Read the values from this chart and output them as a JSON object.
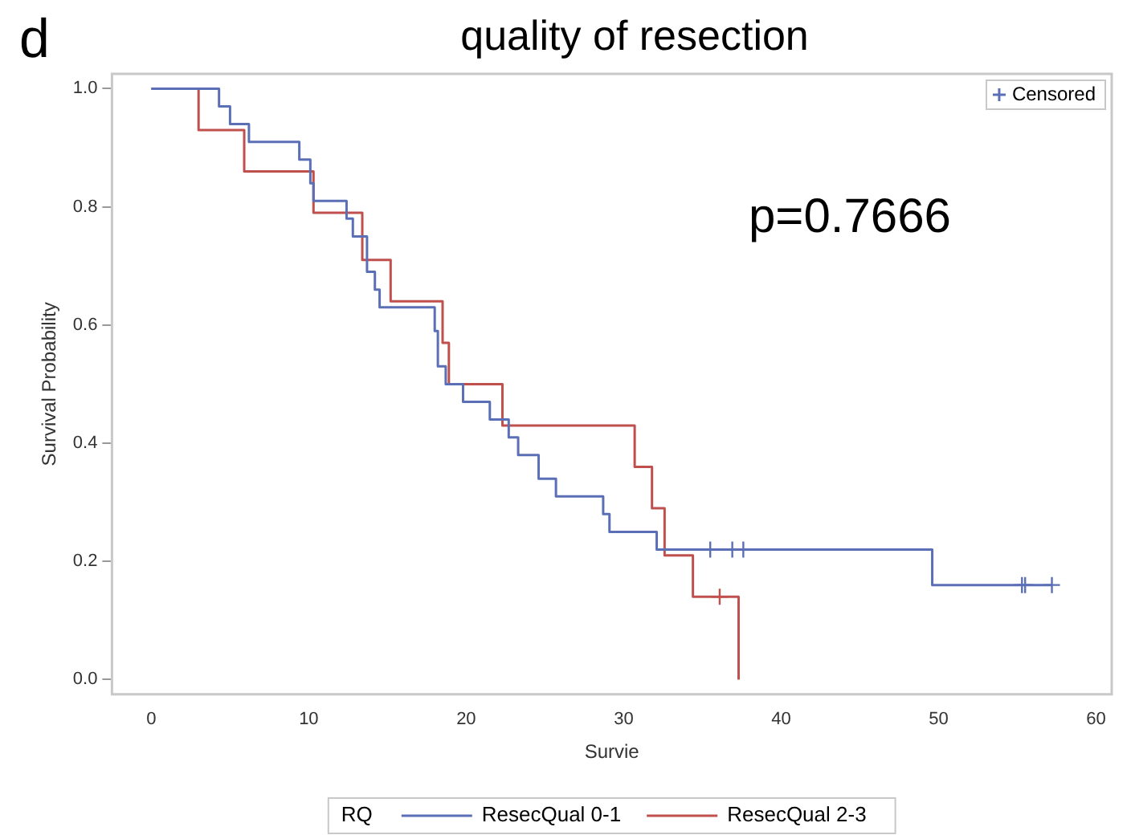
{
  "chart_data": {
    "type": "step",
    "title": "quality of resection",
    "xlabel": "Survie",
    "ylabel": "Survival Probability",
    "legend_title": "RQ",
    "legend": "bottom",
    "annotations": [
      "d",
      "p=0.7666"
    ],
    "xlim": [
      -2.5,
      61
    ],
    "xticks": [
      0,
      10,
      20,
      30,
      40,
      50,
      60
    ],
    "ylim": [
      -0.025,
      1.025
    ],
    "yticks": [
      {
        "value": 0,
        "label": "0.0"
      },
      {
        "value": 0.2,
        "label": "0.2"
      },
      {
        "value": 0.4,
        "label": "0.4"
      },
      {
        "value": 0.6,
        "label": "0.6"
      },
      {
        "value": 0.8,
        "label": "0.8"
      },
      {
        "value": 1,
        "label": "1.0"
      }
    ],
    "series": [
      {
        "name": "ResecQual 0-1",
        "color": "#5a6fb5",
        "x": [
          0,
          4.3,
          5.0,
          6.2,
          9.4,
          10.1,
          10.3,
          12.4,
          12.8,
          13.7,
          14.2,
          14.5,
          18.0,
          18.2,
          18.7,
          19.8,
          21.5,
          22.7,
          23.3,
          24.6,
          25.7,
          28.7,
          29.1,
          32.1,
          49.6,
          57.2
        ],
        "values": [
          1,
          0.97,
          0.94,
          0.91,
          0.88,
          0.84,
          0.81,
          0.78,
          0.75,
          0.69,
          0.66,
          0.63,
          0.59,
          0.53,
          0.5,
          0.47,
          0.44,
          0.41,
          0.38,
          0.34,
          0.31,
          0.28,
          0.25,
          0.22,
          0.16,
          0.16
        ]
      },
      {
        "name": "ResecQual 2-3",
        "color": "#c0504d",
        "x": [
          0,
          3.0,
          5.9,
          10.3,
          13.4,
          15.2,
          18.5,
          18.9,
          22.3,
          30.7,
          31.8,
          32.6,
          34.4,
          37.3
        ],
        "values": [
          1,
          0.93,
          0.86,
          0.79,
          0.71,
          0.64,
          0.57,
          0.5,
          0.43,
          0.36,
          0.29,
          0.21,
          0.14,
          0
        ]
      },
      {
        "name": "Censored",
        "type": "scatter",
        "marker": "cross",
        "x": [
          35.5,
          36.9,
          37.6,
          55.3,
          55.5,
          57.2,
          36.1
        ],
        "values": [
          0.22,
          0.22,
          0.22,
          0.16,
          0.16,
          0.16,
          0.14
        ],
        "colors": [
          "#5a6fb5",
          "#5a6fb5",
          "#5a6fb5",
          "#5a6fb5",
          "#5a6fb5",
          "#5a6fb5",
          "#c0504d"
        ]
      }
    ]
  }
}
